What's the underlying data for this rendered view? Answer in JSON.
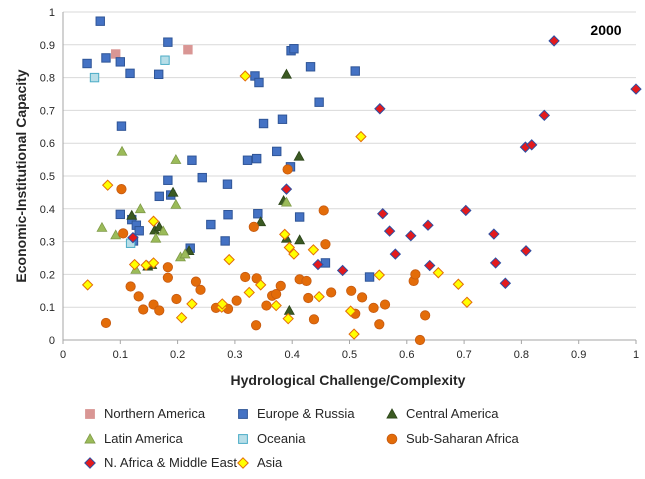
{
  "chart_data": {
    "type": "scatter",
    "annotation": "2000",
    "xlabel": "Hydrological Challenge/Complexity",
    "ylabel": "Economic-Institutional Capacity",
    "xlim": [
      0,
      1
    ],
    "ylim": [
      0,
      1
    ],
    "xticks": [
      "0",
      "0.1",
      "0.2",
      "0.3",
      "0.4",
      "0.5",
      "0.6",
      "0.7",
      "0.8",
      "0.9",
      "1"
    ],
    "yticks": [
      "0",
      "0.1",
      "0.2",
      "0.3",
      "0.4",
      "0.5",
      "0.6",
      "0.7",
      "0.8",
      "0.9",
      "1"
    ],
    "grid": true,
    "legend_position": "bottom",
    "series": [
      {
        "name": "Northern America",
        "marker": "square",
        "color": "#d99694",
        "edge": "#d99694",
        "points": [
          [
            0.092,
            0.872
          ],
          [
            0.218,
            0.885
          ]
        ]
      },
      {
        "name": "Europe & Russia",
        "marker": "square",
        "color": "#4472c4",
        "edge": "#2f5597",
        "points": [
          [
            0.042,
            0.843
          ],
          [
            0.065,
            0.972
          ],
          [
            0.075,
            0.86
          ],
          [
            0.1,
            0.848
          ],
          [
            0.117,
            0.813
          ],
          [
            0.102,
            0.652
          ],
          [
            0.167,
            0.81
          ],
          [
            0.183,
            0.908
          ],
          [
            0.1,
            0.383
          ],
          [
            0.12,
            0.367
          ],
          [
            0.128,
            0.35
          ],
          [
            0.133,
            0.333
          ],
          [
            0.123,
            0.302
          ],
          [
            0.183,
            0.487
          ],
          [
            0.188,
            0.442
          ],
          [
            0.168,
            0.438
          ],
          [
            0.225,
            0.548
          ],
          [
            0.243,
            0.495
          ],
          [
            0.222,
            0.28
          ],
          [
            0.258,
            0.352
          ],
          [
            0.283,
            0.302
          ],
          [
            0.287,
            0.475
          ],
          [
            0.288,
            0.382
          ],
          [
            0.322,
            0.548
          ],
          [
            0.335,
            0.805
          ],
          [
            0.342,
            0.785
          ],
          [
            0.35,
            0.66
          ],
          [
            0.338,
            0.553
          ],
          [
            0.34,
            0.385
          ],
          [
            0.373,
            0.575
          ],
          [
            0.383,
            0.673
          ],
          [
            0.398,
            0.882
          ],
          [
            0.403,
            0.888
          ],
          [
            0.432,
            0.833
          ],
          [
            0.447,
            0.725
          ],
          [
            0.397,
            0.528
          ],
          [
            0.413,
            0.375
          ],
          [
            0.458,
            0.235
          ],
          [
            0.51,
            0.82
          ],
          [
            0.535,
            0.192
          ]
        ]
      },
      {
        "name": "Central America",
        "marker": "triangle",
        "color": "#3b5a22",
        "edge": "#2b4418",
        "points": [
          [
            0.12,
            0.38
          ],
          [
            0.148,
            0.225
          ],
          [
            0.155,
            0.23
          ],
          [
            0.16,
            0.335
          ],
          [
            0.168,
            0.345
          ],
          [
            0.192,
            0.45
          ],
          [
            0.22,
            0.272
          ],
          [
            0.385,
            0.425
          ],
          [
            0.39,
            0.81
          ],
          [
            0.39,
            0.31
          ],
          [
            0.395,
            0.09
          ],
          [
            0.412,
            0.56
          ],
          [
            0.413,
            0.305
          ],
          [
            0.345,
            0.36
          ]
        ]
      },
      {
        "name": "Latin America",
        "marker": "triangle",
        "color": "#9bbb59",
        "edge": "#7f9a48",
        "points": [
          [
            0.068,
            0.343
          ],
          [
            0.092,
            0.32
          ],
          [
            0.103,
            0.575
          ],
          [
            0.127,
            0.215
          ],
          [
            0.135,
            0.4
          ],
          [
            0.162,
            0.31
          ],
          [
            0.175,
            0.332
          ],
          [
            0.197,
            0.55
          ],
          [
            0.197,
            0.413
          ],
          [
            0.205,
            0.253
          ],
          [
            0.213,
            0.262
          ],
          [
            0.39,
            0.42
          ]
        ]
      },
      {
        "name": "Oceania",
        "marker": "square",
        "color": "#b7dee8",
        "edge": "#4bacc6",
        "points": [
          [
            0.055,
            0.8
          ],
          [
            0.178,
            0.853
          ],
          [
            0.118,
            0.295
          ]
        ]
      },
      {
        "name": "Sub-Saharan Africa",
        "marker": "circle",
        "color": "#e36c09",
        "edge": "#c55a11",
        "points": [
          [
            0.075,
            0.052
          ],
          [
            0.102,
            0.46
          ],
          [
            0.105,
            0.325
          ],
          [
            0.118,
            0.163
          ],
          [
            0.132,
            0.133
          ],
          [
            0.14,
            0.093
          ],
          [
            0.158,
            0.108
          ],
          [
            0.168,
            0.09
          ],
          [
            0.183,
            0.222
          ],
          [
            0.183,
            0.19
          ],
          [
            0.198,
            0.125
          ],
          [
            0.232,
            0.178
          ],
          [
            0.24,
            0.153
          ],
          [
            0.267,
            0.098
          ],
          [
            0.288,
            0.095
          ],
          [
            0.303,
            0.12
          ],
          [
            0.318,
            0.192
          ],
          [
            0.333,
            0.345
          ],
          [
            0.337,
            0.045
          ],
          [
            0.338,
            0.188
          ],
          [
            0.355,
            0.105
          ],
          [
            0.365,
            0.135
          ],
          [
            0.372,
            0.14
          ],
          [
            0.38,
            0.165
          ],
          [
            0.392,
            0.52
          ],
          [
            0.413,
            0.185
          ],
          [
            0.425,
            0.18
          ],
          [
            0.428,
            0.128
          ],
          [
            0.438,
            0.063
          ],
          [
            0.455,
            0.395
          ],
          [
            0.458,
            0.292
          ],
          [
            0.503,
            0.15
          ],
          [
            0.51,
            0.08
          ],
          [
            0.522,
            0.13
          ],
          [
            0.542,
            0.098
          ],
          [
            0.552,
            0.048
          ],
          [
            0.562,
            0.108
          ],
          [
            0.612,
            0.18
          ],
          [
            0.615,
            0.2
          ],
          [
            0.623,
            0.0
          ],
          [
            0.632,
            0.075
          ],
          [
            0.468,
            0.145
          ]
        ]
      },
      {
        "name": "N. Africa & Middle East",
        "marker": "diamond",
        "color": "#e31a1c",
        "edge": "#2e4fa3",
        "points": [
          [
            0.122,
            0.312
          ],
          [
            0.39,
            0.46
          ],
          [
            0.445,
            0.23
          ],
          [
            0.488,
            0.212
          ],
          [
            0.553,
            0.705
          ],
          [
            0.558,
            0.385
          ],
          [
            0.57,
            0.332
          ],
          [
            0.58,
            0.262
          ],
          [
            0.607,
            0.318
          ],
          [
            0.637,
            0.35
          ],
          [
            0.64,
            0.227
          ],
          [
            0.703,
            0.395
          ],
          [
            0.752,
            0.323
          ],
          [
            0.755,
            0.235
          ],
          [
            0.772,
            0.173
          ],
          [
            0.807,
            0.588
          ],
          [
            0.808,
            0.272
          ],
          [
            0.818,
            0.595
          ],
          [
            0.84,
            0.685
          ],
          [
            0.857,
            0.912
          ],
          [
            1.0,
            0.765
          ]
        ]
      },
      {
        "name": "Asia",
        "marker": "diamond",
        "color": "#ffff00",
        "edge": "#e36c09",
        "points": [
          [
            0.043,
            0.168
          ],
          [
            0.078,
            0.472
          ],
          [
            0.125,
            0.23
          ],
          [
            0.145,
            0.228
          ],
          [
            0.158,
            0.235
          ],
          [
            0.158,
            0.362
          ],
          [
            0.207,
            0.068
          ],
          [
            0.225,
            0.11
          ],
          [
            0.277,
            0.1
          ],
          [
            0.278,
            0.11
          ],
          [
            0.29,
            0.245
          ],
          [
            0.318,
            0.805
          ],
          [
            0.325,
            0.145
          ],
          [
            0.345,
            0.168
          ],
          [
            0.372,
            0.105
          ],
          [
            0.387,
            0.322
          ],
          [
            0.393,
            0.065
          ],
          [
            0.395,
            0.282
          ],
          [
            0.403,
            0.262
          ],
          [
            0.437,
            0.275
          ],
          [
            0.447,
            0.132
          ],
          [
            0.502,
            0.088
          ],
          [
            0.508,
            0.018
          ],
          [
            0.52,
            0.62
          ],
          [
            0.552,
            0.198
          ],
          [
            0.655,
            0.205
          ],
          [
            0.69,
            0.17
          ],
          [
            0.705,
            0.115
          ]
        ]
      }
    ]
  }
}
